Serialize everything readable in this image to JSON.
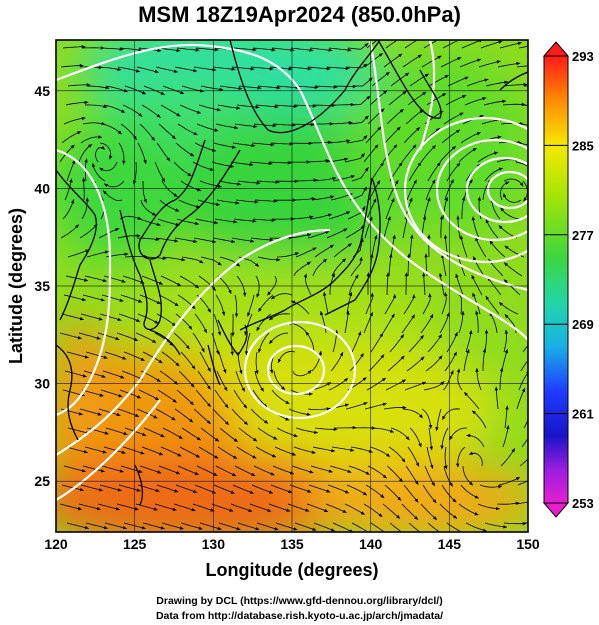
{
  "title": "MSM 18Z19Apr2024 (850.0hPa)",
  "axes": {
    "xlabel": "Longitude (degrees)",
    "ylabel": "Latitude  (degrees)",
    "lon_range": [
      120,
      150
    ],
    "lat_range": [
      22.4,
      47.6
    ],
    "xticks": [
      120,
      125,
      130,
      135,
      140,
      145,
      150
    ],
    "yticks": [
      25,
      30,
      35,
      40,
      45
    ]
  },
  "colorbar": {
    "ticks": [
      "293",
      "285",
      "277",
      "269",
      "261",
      "253"
    ],
    "range": [
      253,
      293
    ],
    "colors": [
      "#ff1a1a",
      "#ff8c00",
      "#f5e800",
      "#aee600",
      "#3dd63d",
      "#22d6a6",
      "#19b0e6",
      "#1e3cff",
      "#1a14c8",
      "#a01ee0",
      "#e81ecf"
    ]
  },
  "credits": {
    "line1": "Drawing by DCL (https://www.gfd-dennou.org/library/dcl/)",
    "line2": "Data from http://database.rish.kyoto-u.ac.jp/arch/jmadata/"
  }
}
